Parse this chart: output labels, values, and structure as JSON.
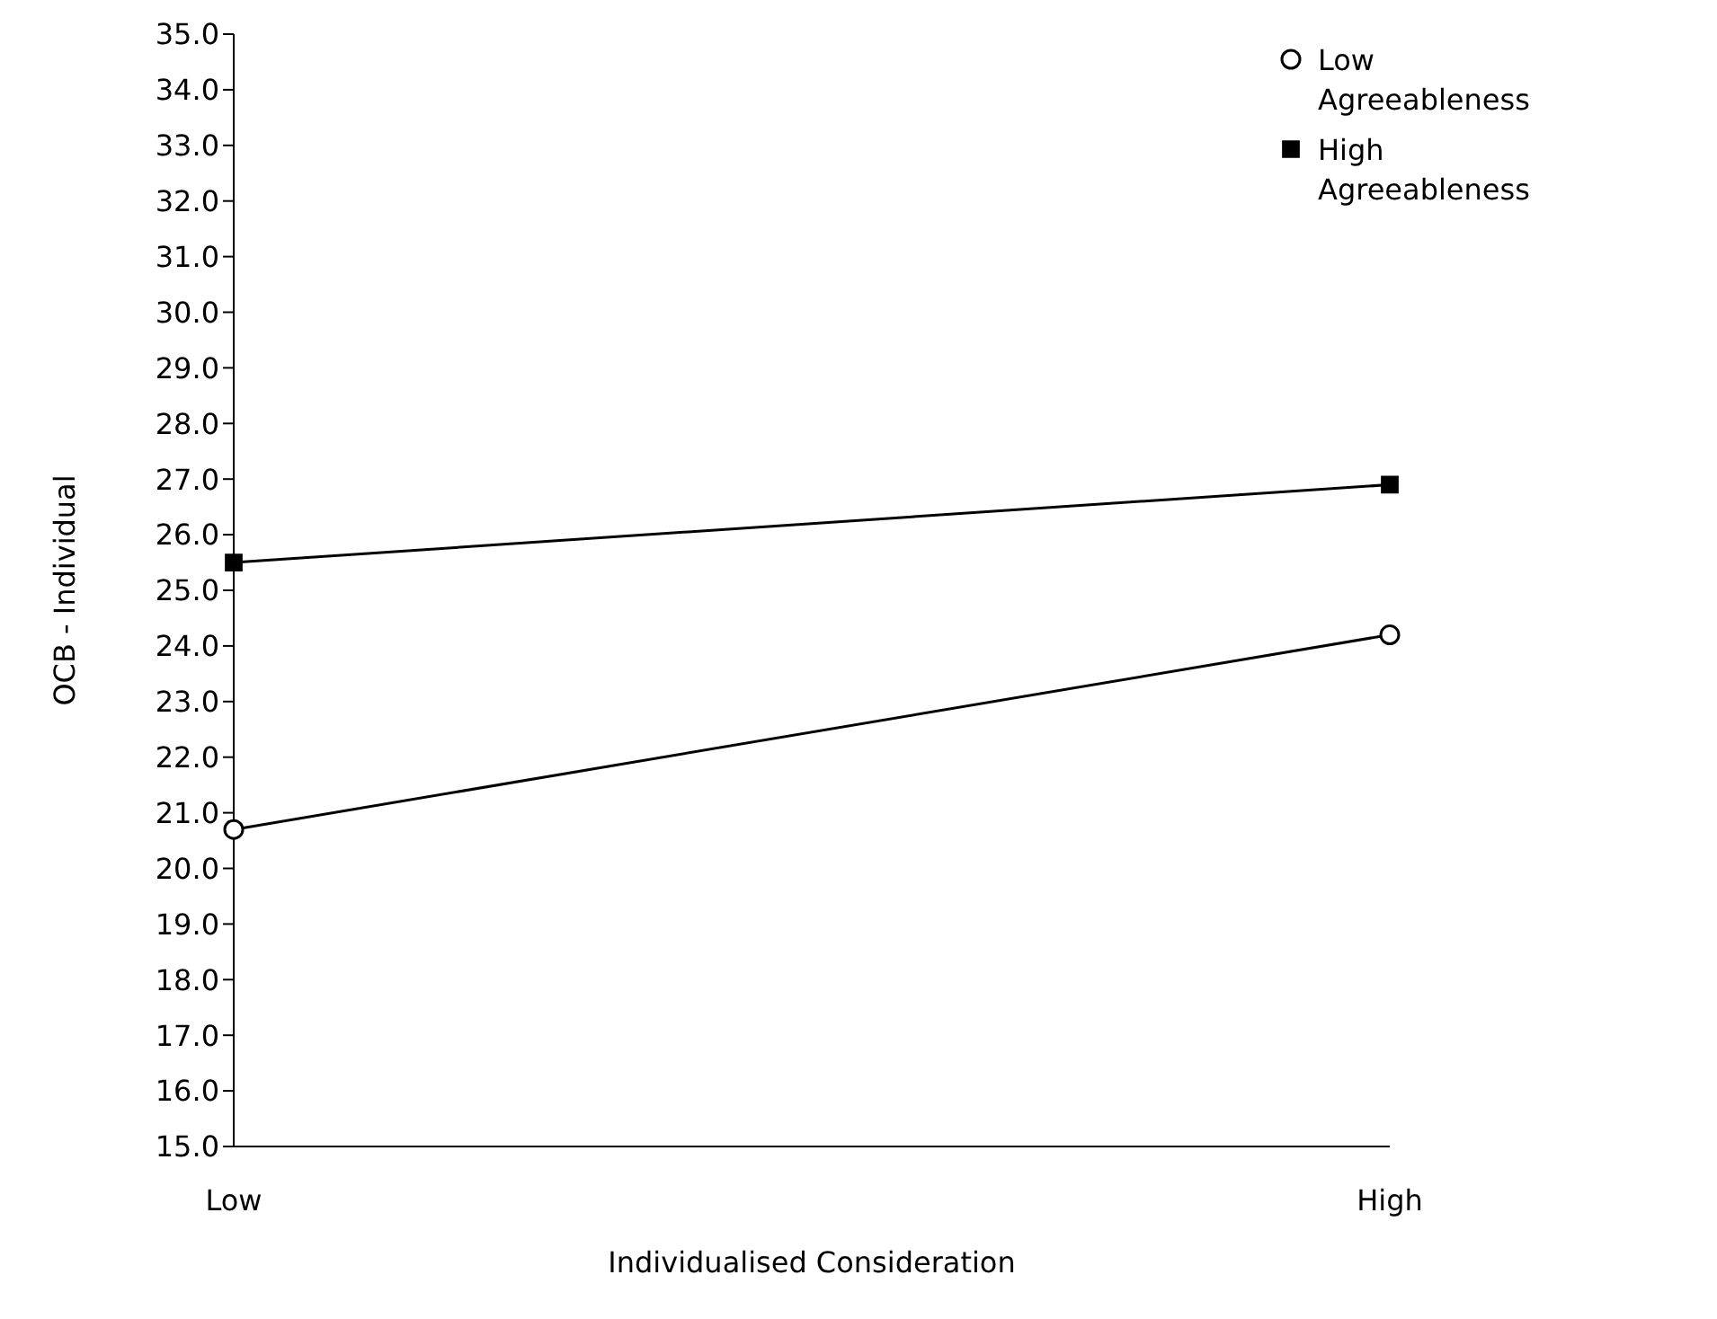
{
  "chart_data": {
    "type": "line",
    "xlabel": "Individualised Consideration",
    "ylabel": "OCB - Individual",
    "categories": [
      "Low",
      "High"
    ],
    "series": [
      {
        "name": "Low Agreeableness",
        "color": "#000000",
        "marker": "circle",
        "values": [
          20.7,
          24.2
        ]
      },
      {
        "name": "High Agreeableness",
        "color": "#000000",
        "marker": "square",
        "values": [
          25.5,
          26.9
        ]
      }
    ],
    "ylim": [
      15,
      35
    ],
    "yticks": [
      {
        "value": 15,
        "label": "15.0"
      },
      {
        "value": 16,
        "label": "16.0"
      },
      {
        "value": 17,
        "label": "17.0"
      },
      {
        "value": 18,
        "label": "18.0"
      },
      {
        "value": 19,
        "label": "19.0"
      },
      {
        "value": 20,
        "label": "20.0"
      },
      {
        "value": 21,
        "label": "21.0"
      },
      {
        "value": 22,
        "label": "22.0"
      },
      {
        "value": 23,
        "label": "23.0"
      },
      {
        "value": 24,
        "label": "24.0"
      },
      {
        "value": 25,
        "label": "25.0"
      },
      {
        "value": 26,
        "label": "26.0"
      },
      {
        "value": 27,
        "label": "27.0"
      },
      {
        "value": 28,
        "label": "28.0"
      },
      {
        "value": 29,
        "label": "29.0"
      },
      {
        "value": 30,
        "label": "30.0"
      },
      {
        "value": 31,
        "label": "31.0"
      },
      {
        "value": 32,
        "label": "32.0"
      },
      {
        "value": 33,
        "label": "33.0"
      },
      {
        "value": 34,
        "label": "34.0"
      },
      {
        "value": 35,
        "label": "35.0"
      }
    ],
    "grid": false,
    "legend": "top right",
    "line_style": "solid"
  }
}
